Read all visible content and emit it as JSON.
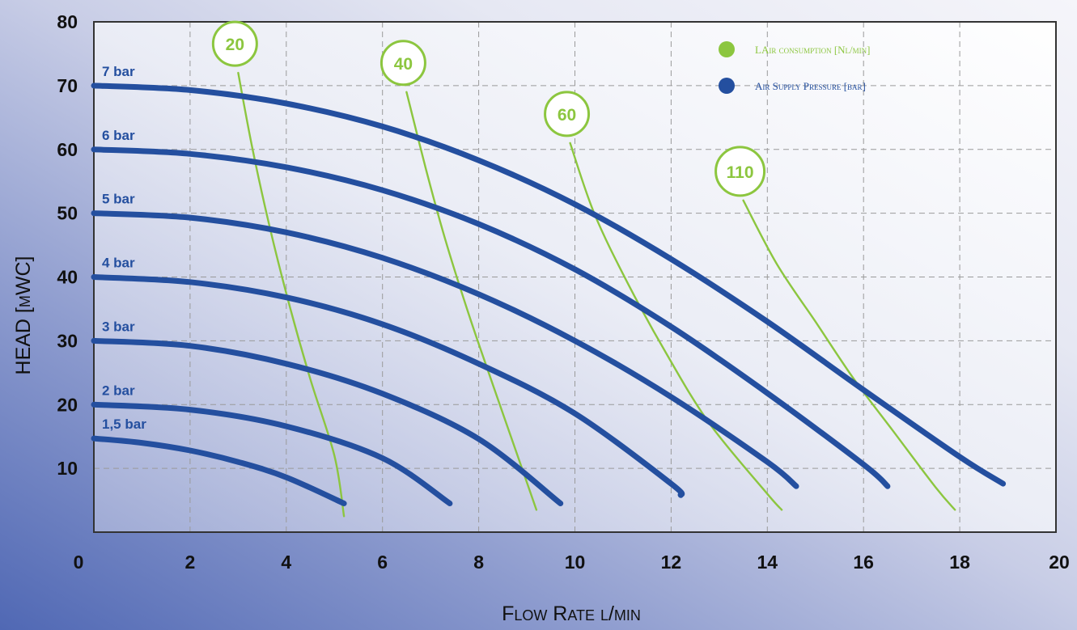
{
  "chart_data": {
    "type": "line",
    "xlabel": "Flow Rate l/min",
    "ylabel": "HEAD [mWC]",
    "xlim": [
      0,
      20
    ],
    "ylim": [
      0,
      80
    ],
    "x_ticks": [
      "0",
      "2",
      "4",
      "6",
      "8",
      "10",
      "12",
      "14",
      "16",
      "18",
      "20"
    ],
    "y_ticks": [
      "10",
      "20",
      "30",
      "40",
      "50",
      "60",
      "70",
      "80"
    ],
    "grid": true,
    "legend_position": "top-right",
    "legend": [
      {
        "label": "LAir consumption [Nl/min]",
        "color": "#8cc63f",
        "marker": "circle"
      },
      {
        "label": "Air Supply Pressure [bar]",
        "color": "#244f9f",
        "marker": "circle"
      }
    ],
    "colors": {
      "pressure": "#244f9f",
      "air": "#8cc63f",
      "grid": "#9a9a9a",
      "plot_bg": "#eef0f5"
    },
    "pressure_series": [
      {
        "name": "7 bar",
        "x": [
          0,
          2,
          4,
          6,
          8,
          10,
          12,
          14,
          16,
          18,
          18.9
        ],
        "y": [
          70,
          69.3,
          67.2,
          63.6,
          58.3,
          51.4,
          42.8,
          33,
          22.3,
          11.8,
          7.6
        ]
      },
      {
        "name": "6 bar",
        "x": [
          0,
          2,
          4,
          6,
          8,
          10,
          12,
          14,
          16,
          16.5
        ],
        "y": [
          60,
          59.3,
          57.2,
          53.6,
          48.3,
          41.2,
          32.2,
          21.8,
          10.6,
          7.2
        ]
      },
      {
        "name": "5 bar",
        "x": [
          0,
          2,
          4,
          6,
          8,
          10,
          12,
          14,
          14.6
        ],
        "y": [
          50,
          49.3,
          47,
          43,
          37.3,
          30,
          21.2,
          11,
          7.2
        ]
      },
      {
        "name": "4 bar",
        "x": [
          0,
          2,
          4,
          6,
          8,
          10,
          12,
          12.2
        ],
        "y": [
          40,
          39.2,
          36.8,
          32.6,
          26.4,
          18.6,
          7.6,
          5.8
        ]
      },
      {
        "name": "3 bar",
        "x": [
          0,
          2,
          4,
          6,
          8,
          9.7
        ],
        "y": [
          30,
          29.2,
          26.4,
          21.7,
          14.6,
          4.5
        ]
      },
      {
        "name": "2 bar",
        "x": [
          0,
          2,
          4,
          6,
          7.4
        ],
        "y": [
          20,
          19.2,
          16.6,
          11.6,
          4.5
        ]
      },
      {
        "name": "1,5 bar",
        "x": [
          0,
          1,
          2,
          3,
          4,
          5.2
        ],
        "y": [
          14.7,
          14,
          12.8,
          11,
          8.6,
          4.5
        ]
      }
    ],
    "air_series": [
      {
        "name": "20",
        "x": [
          3.0,
          3.3,
          3.65,
          4.05,
          4.5,
          5.0,
          5.2
        ],
        "y": [
          72,
          60,
          48,
          36,
          24,
          12,
          2.5
        ]
      },
      {
        "name": "40",
        "x": [
          6.5,
          6.9,
          7.3,
          7.8,
          8.3,
          8.9,
          9.2
        ],
        "y": [
          69,
          57,
          46,
          34,
          23,
          10,
          3.5
        ]
      },
      {
        "name": "60",
        "x": [
          9.9,
          10.4,
          11.1,
          11.9,
          12.8,
          14.0,
          14.3
        ],
        "y": [
          61,
          50,
          39,
          28,
          17,
          6,
          3.5
        ]
      },
      {
        "name": "110",
        "x": [
          13.5,
          14.2,
          15.0,
          15.8,
          16.6,
          17.5,
          17.9
        ],
        "y": [
          52,
          42,
          33,
          24,
          16,
          7,
          3.5
        ]
      }
    ]
  }
}
